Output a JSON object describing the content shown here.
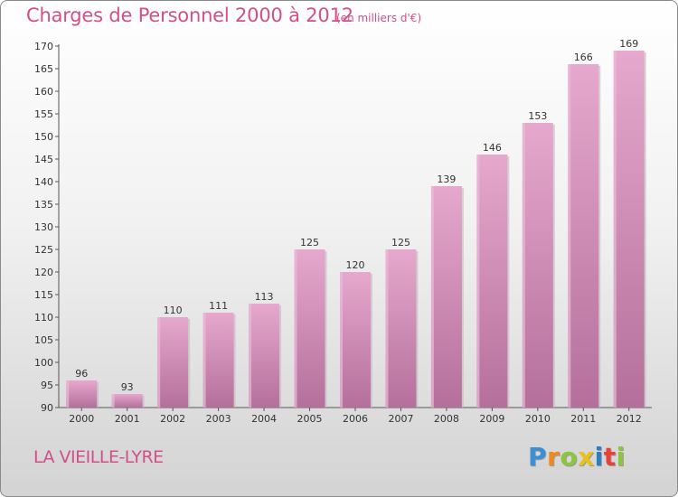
{
  "header": {
    "title": "Charges de Personnel 2000 à 2012",
    "subtitle": "(en milliers d'€)"
  },
  "footer": {
    "commune": "LA VIEILLE-LYRE",
    "logo": {
      "letters": [
        "P",
        "r",
        "o",
        "x",
        "i",
        "t",
        "i"
      ],
      "colors": [
        "#3a8fd6",
        "#f08a1c",
        "#8cc63f",
        "#e8c21a",
        "#2d7cc4",
        "#e8403a",
        "#8cc63f"
      ]
    }
  },
  "colors": {
    "bar_face": "#d98fbb",
    "bar_dark": "#b66a97",
    "bar_light": "#e9b3d3",
    "text_accent": "#d24f8a"
  },
  "chart_data": {
    "type": "bar",
    "categories": [
      "2000",
      "2001",
      "2002",
      "2003",
      "2004",
      "2005",
      "2006",
      "2007",
      "2008",
      "2009",
      "2010",
      "2011",
      "2012"
    ],
    "values": [
      96,
      93,
      110,
      111,
      113,
      125,
      120,
      125,
      139,
      146,
      153,
      166,
      169
    ],
    "title": "Charges de Personnel 2000 à 2012",
    "subtitle": "(en milliers d'€)",
    "xlabel": "",
    "ylabel": "",
    "ylim": [
      90,
      170
    ],
    "yticks": [
      90,
      95,
      100,
      105,
      110,
      115,
      120,
      125,
      130,
      135,
      140,
      145,
      150,
      155,
      160,
      165,
      170
    ],
    "grid": false,
    "data_labels": true
  }
}
